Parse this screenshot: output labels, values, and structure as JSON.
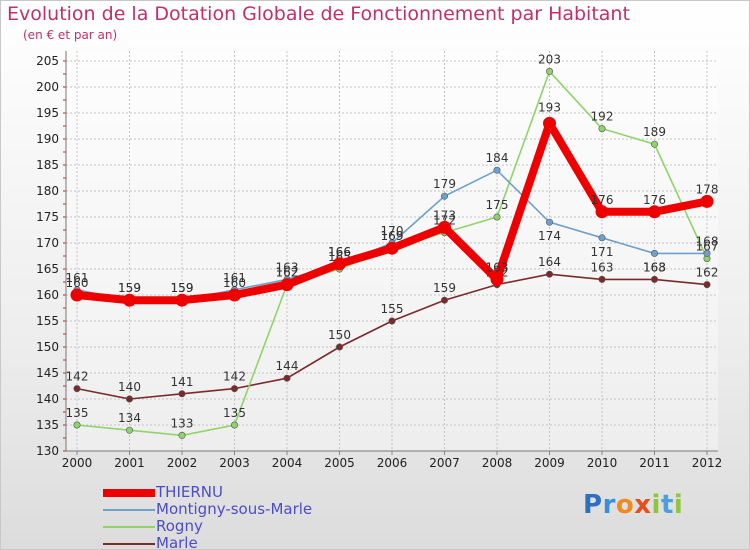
{
  "chart_data": {
    "type": "line",
    "title": "Evolution de la Dotation Globale de Fonctionnement par Habitant",
    "subtitle": "(en € et par an)",
    "x": [
      "2000",
      "2001",
      "2002",
      "2003",
      "2004",
      "2005",
      "2006",
      "2007",
      "2008",
      "2009",
      "2010",
      "2011",
      "2012"
    ],
    "ylim": [
      130,
      205
    ],
    "yticks": [
      130,
      135,
      140,
      145,
      150,
      155,
      160,
      165,
      170,
      175,
      180,
      185,
      190,
      195,
      200,
      205
    ],
    "grid": true,
    "legend_position": "bottom-left",
    "series": [
      {
        "name": "Marle",
        "color": "#7a2a2a",
        "values": [
          142,
          140,
          141,
          142,
          144,
          150,
          155,
          159,
          162,
          164,
          163,
          163,
          162
        ]
      },
      {
        "name": "Rogny",
        "color": "#8fd46a",
        "values": [
          135,
          134,
          133,
          135,
          162,
          165,
          169,
          172,
          175,
          203,
          192,
          189,
          167
        ]
      },
      {
        "name": "Montigny-sous-Marle",
        "color": "#6fa0cc",
        "values": [
          161,
          159,
          159,
          161,
          163,
          166,
          170,
          179,
          184,
          174,
          171,
          168,
          168
        ]
      },
      {
        "name": "THIERNU",
        "color": "#ee0000",
        "values": [
          160,
          159,
          159,
          160,
          162,
          166,
          169,
          173,
          163,
          193,
          176,
          176,
          178
        ]
      }
    ]
  },
  "legend": [
    "THIERNU",
    "Montigny-sous-Marle",
    "Rogny",
    "Marle"
  ],
  "brand": {
    "letters": [
      "P",
      "r",
      "o",
      "x",
      "i",
      "t",
      "i"
    ],
    "colors": [
      "#2f6fc0",
      "#3b8fd8",
      "#f08a1c",
      "#e84d1a",
      "#8fc53a",
      "#4aa0dc",
      "#8fc53a"
    ]
  }
}
